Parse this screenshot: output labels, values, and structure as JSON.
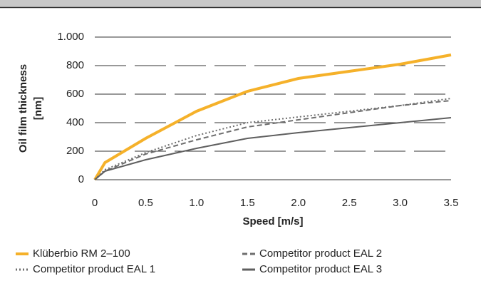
{
  "chart_data": {
    "type": "line",
    "xlabel": "Speed [m/s]",
    "ylabel": [
      "Oil film thickness",
      "[nm]"
    ],
    "x": [
      0,
      0.1,
      0.5,
      1.0,
      1.5,
      2.0,
      2.5,
      3.0,
      3.5
    ],
    "series": [
      {
        "name": "Klüberbio RM 2–100",
        "color": "#f5b12a",
        "dash": "solid",
        "values": [
          0,
          120,
          290,
          480,
          620,
          710,
          760,
          810,
          875
        ]
      },
      {
        "name": "Competitor product EAL 1",
        "color": "#6e6e6e",
        "dash": "dotted",
        "values": [
          0,
          70,
          190,
          310,
          400,
          440,
          480,
          520,
          570
        ]
      },
      {
        "name": "Competitor product EAL 2",
        "color": "#6e6e6e",
        "dash": "dashed",
        "values": [
          0,
          60,
          180,
          280,
          370,
          420,
          470,
          520,
          555
        ]
      },
      {
        "name": "Competitor product EAL 3",
        "color": "#5f5f5f",
        "dash": "solid",
        "values": [
          0,
          60,
          140,
          220,
          290,
          330,
          365,
          400,
          435
        ]
      }
    ],
    "xlim": [
      0,
      3.5
    ],
    "xticks": [
      0,
      0.5,
      {
        "value": 1,
        "label": "1.0"
      },
      1.5,
      {
        "value": 2,
        "label": "2.0"
      },
      2.5,
      {
        "value": 3,
        "label": "3.0"
      },
      3.5
    ],
    "ylim": [
      0,
      1000
    ],
    "yticks": [
      0,
      200,
      400,
      600,
      800,
      {
        "value": 1000,
        "label": "1.000"
      }
    ],
    "grid": true
  }
}
